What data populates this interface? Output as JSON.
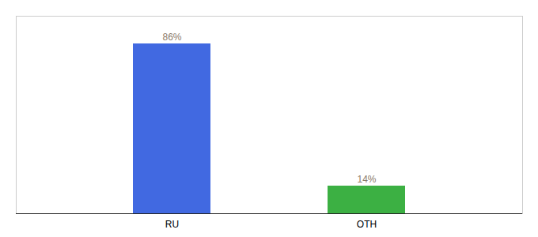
{
  "chart_data": {
    "type": "bar",
    "categories": [
      "RU",
      "OTH"
    ],
    "values": [
      86,
      14
    ],
    "value_labels": [
      "86%",
      "14%"
    ],
    "colors": [
      "#4169e1",
      "#3cb043"
    ],
    "ylim": [
      0,
      100
    ],
    "data_labels": true,
    "tick_labels": "x"
  }
}
